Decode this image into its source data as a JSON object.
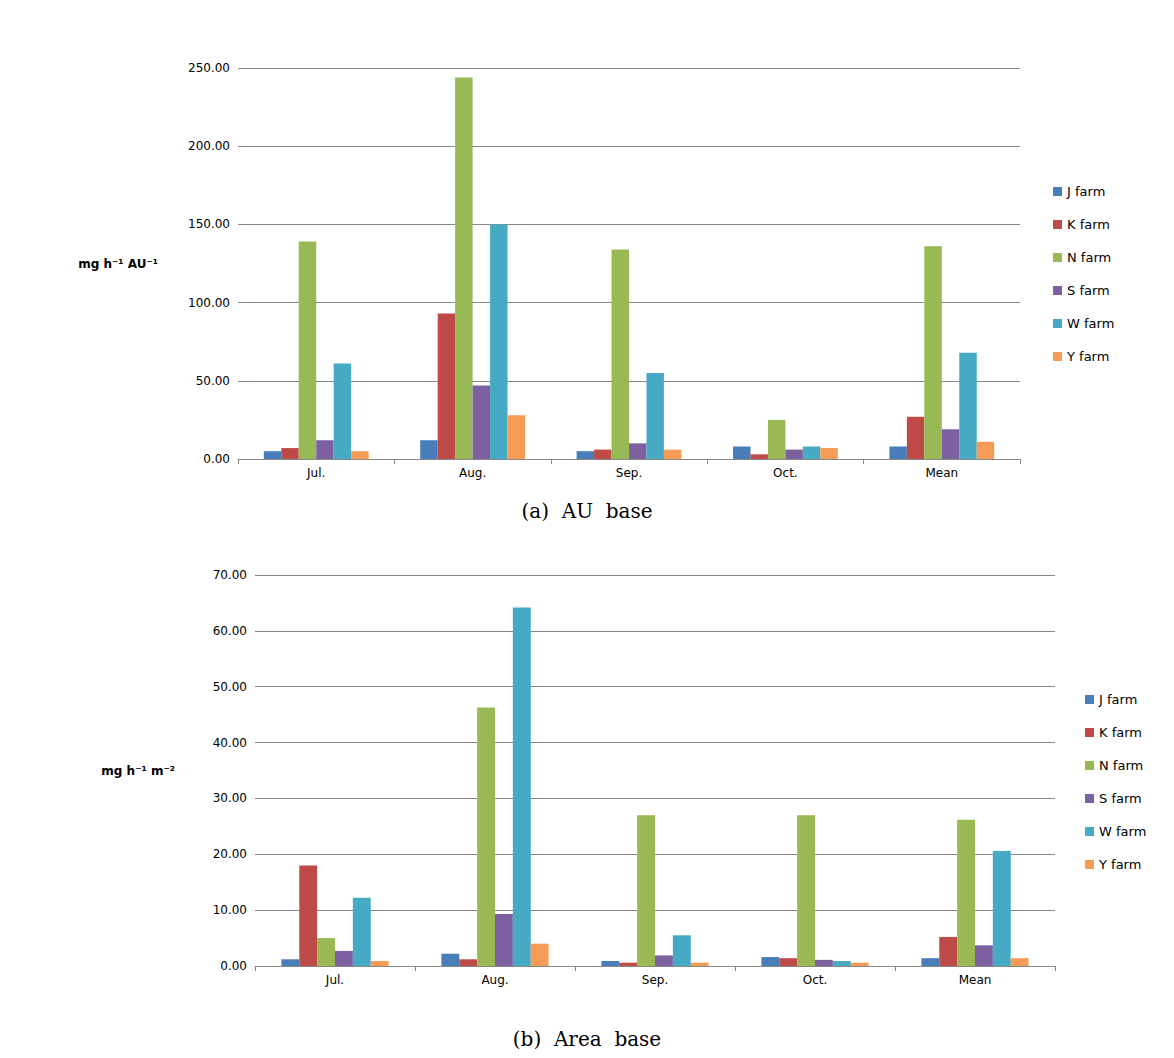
{
  "chart_data": [
    {
      "type": "bar",
      "title": "(a)  AU  base",
      "ylabel": "mg h⁻¹ AU⁻¹",
      "categories": [
        "Jul.",
        "Aug.",
        "Sep.",
        "Oct.",
        "Mean"
      ],
      "series": [
        {
          "name": "J farm",
          "color": "#4a7ebb",
          "values": [
            5,
            12,
            5,
            8,
            8
          ]
        },
        {
          "name": "K farm",
          "color": "#be4b48",
          "values": [
            7,
            93,
            6,
            3,
            27
          ]
        },
        {
          "name": "N farm",
          "color": "#98b954",
          "values": [
            139,
            244,
            134,
            25,
            136
          ]
        },
        {
          "name": "S farm",
          "color": "#7d60a0",
          "values": [
            12,
            47,
            10,
            6,
            19
          ]
        },
        {
          "name": "W farm",
          "color": "#46aac5",
          "values": [
            61,
            150,
            55,
            8,
            68
          ]
        },
        {
          "name": "Y farm",
          "color": "#f59d56",
          "values": [
            5,
            28,
            6,
            7,
            11
          ]
        }
      ],
      "ylim": [
        0,
        250
      ],
      "yticks": [
        {
          "value": 0,
          "label": "0.00"
        },
        {
          "value": 50,
          "label": "50.00"
        },
        {
          "value": 100,
          "label": "100.00"
        },
        {
          "value": 150,
          "label": "150.00"
        },
        {
          "value": 200,
          "label": "200.00"
        },
        {
          "value": 250,
          "label": "250.00"
        }
      ],
      "grid": true,
      "legend": "right"
    },
    {
      "type": "bar",
      "title": "(b)  Area  base",
      "ylabel": "mg h⁻¹ m⁻²",
      "categories": [
        "Jul.",
        "Aug.",
        "Sep.",
        "Oct.",
        "Mean"
      ],
      "series": [
        {
          "name": "J farm",
          "color": "#4a7ebb",
          "values": [
            1.2,
            2.2,
            0.9,
            1.6,
            1.4
          ]
        },
        {
          "name": "K farm",
          "color": "#be4b48",
          "values": [
            18,
            1.2,
            0.6,
            1.4,
            5.2
          ]
        },
        {
          "name": "N farm",
          "color": "#98b954",
          "values": [
            5,
            46.3,
            27,
            27,
            26.2
          ]
        },
        {
          "name": "S farm",
          "color": "#7d60a0",
          "values": [
            2.7,
            9.3,
            1.9,
            1.1,
            3.7
          ]
        },
        {
          "name": "W farm",
          "color": "#46aac5",
          "values": [
            12.2,
            64.2,
            5.5,
            0.9,
            20.6
          ]
        },
        {
          "name": "Y farm",
          "color": "#f59d56",
          "values": [
            0.9,
            4,
            0.6,
            0.6,
            1.4
          ]
        }
      ],
      "ylim": [
        0,
        70
      ],
      "yticks": [
        {
          "value": 0,
          "label": "0.00"
        },
        {
          "value": 10,
          "label": "10.00"
        },
        {
          "value": 20,
          "label": "20.00"
        },
        {
          "value": 30,
          "label": "30.00"
        },
        {
          "value": 40,
          "label": "40.00"
        },
        {
          "value": 50,
          "label": "50.00"
        },
        {
          "value": 60,
          "label": "60.00"
        },
        {
          "value": 70,
          "label": "70.00"
        }
      ],
      "grid": true,
      "legend": "right"
    }
  ]
}
